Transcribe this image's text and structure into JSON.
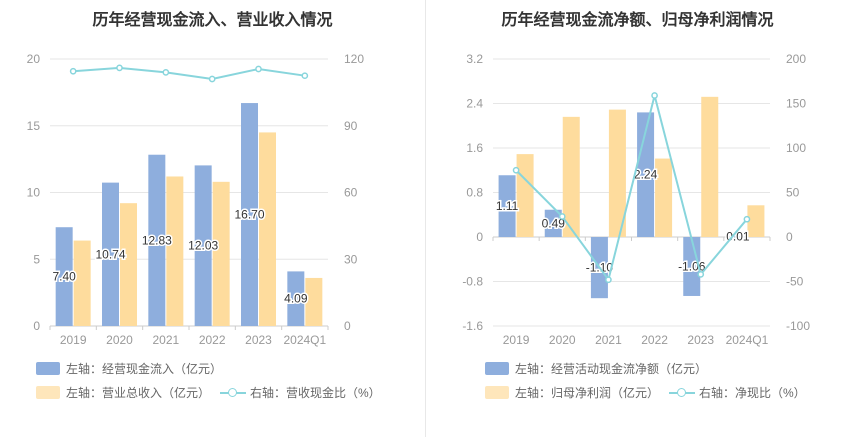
{
  "chart_data": [
    {
      "type": "bar",
      "title": "历年经营现金流入、营业收入情况",
      "categories": [
        "2019",
        "2020",
        "2021",
        "2022",
        "2023",
        "2024Q1"
      ],
      "left_axis": {
        "ticks": [
          "0",
          "5",
          "10",
          "15",
          "20"
        ],
        "ylim": [
          0,
          20
        ]
      },
      "right_axis": {
        "ticks": [
          "0",
          "30",
          "60",
          "90",
          "120"
        ],
        "ylim": [
          0,
          120
        ]
      },
      "series": [
        {
          "name": "左轴：经营现金流入（亿元）",
          "axis": "left",
          "kind": "bar",
          "color": "#8eaedd",
          "values": [
            7.4,
            10.74,
            12.83,
            12.03,
            16.7,
            4.09
          ],
          "labels": [
            "7.40",
            "10.74",
            "12.83",
            "12.03",
            "16.70",
            "4.09"
          ]
        },
        {
          "name": "左轴：营业总收入（亿元）",
          "axis": "left",
          "kind": "bar",
          "color": "#fedc9d",
          "values": [
            6.4,
            9.2,
            11.2,
            10.8,
            14.5,
            3.6
          ]
        },
        {
          "name": "右轴：营收现金比（%）",
          "axis": "right",
          "kind": "line",
          "color": "#88d5dc",
          "values": [
            114.5,
            116.0,
            114.0,
            111.0,
            115.5,
            112.5
          ]
        }
      ],
      "grid": true,
      "legend_position": "bottom"
    },
    {
      "type": "bar",
      "title": "历年经营现金流净额、归母净利润情况",
      "categories": [
        "2019",
        "2020",
        "2021",
        "2022",
        "2023",
        "2024Q1"
      ],
      "left_axis": {
        "ticks": [
          "-1.6",
          "-0.8",
          "0",
          "0.8",
          "1.6",
          "2.4",
          "3.2"
        ],
        "ylim": [
          -1.6,
          3.2
        ]
      },
      "right_axis": {
        "ticks": [
          "-100",
          "-50",
          "0",
          "50",
          "100",
          "150",
          "200"
        ],
        "ylim": [
          -100,
          200
        ]
      },
      "series": [
        {
          "name": "左轴：经营活动现金流净额（亿元）",
          "axis": "left",
          "kind": "bar",
          "color": "#8eaedd",
          "values": [
            1.11,
            0.49,
            -1.1,
            2.24,
            -1.06,
            0.01
          ],
          "labels": [
            "1.11",
            "0.49",
            "-1.10",
            "2.24",
            "-1.06",
            "0.01"
          ]
        },
        {
          "name": "左轴：归母净利润（亿元）",
          "axis": "left",
          "kind": "bar",
          "color": "#fedc9d",
          "values": [
            1.49,
            2.16,
            2.29,
            1.41,
            2.52,
            0.57
          ]
        },
        {
          "name": "右轴：净现比（%）",
          "axis": "right",
          "kind": "line",
          "color": "#88d5dc",
          "values": [
            75,
            23,
            -48,
            159,
            -42,
            20
          ]
        }
      ],
      "grid": true,
      "legend_position": "bottom"
    }
  ]
}
